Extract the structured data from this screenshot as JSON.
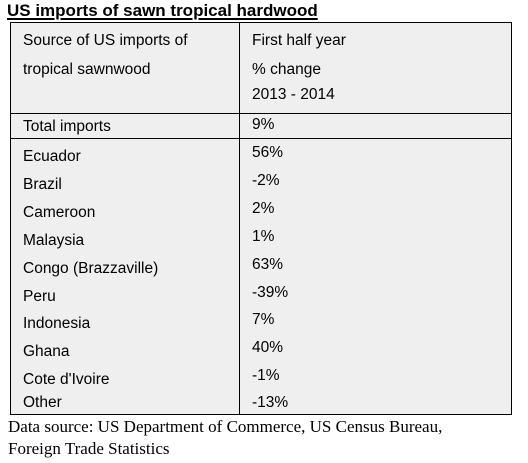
{
  "title": "US imports of sawn tropical hardwood",
  "table": {
    "header": {
      "col1": [
        "Source of US imports of",
        "tropical sawnwood"
      ],
      "col2": [
        "First half year",
        "% change",
        "2013 - 2014"
      ]
    },
    "total": {
      "source": "Total imports",
      "change": "9%"
    },
    "rows": [
      {
        "source": "Ecuador",
        "change": "56%"
      },
      {
        "source": "Brazil",
        "change": "-2%"
      },
      {
        "source": "Cameroon",
        "change": "2%"
      },
      {
        "source": "Malaysia",
        "change": "1%"
      },
      {
        "source": "Congo (Brazzaville)",
        "change": "63%"
      },
      {
        "source": "Peru",
        "change": "-39%"
      },
      {
        "source": "Indonesia",
        "change": "7%"
      },
      {
        "source": "Ghana",
        "change": "40%"
      },
      {
        "source": "Cote d'Ivoire",
        "change": "-1%"
      },
      {
        "source": "Other",
        "change": "-13%"
      }
    ]
  },
  "footer": [
    "Data source: US Department of Commerce, US Census Bureau,",
    "Foreign Trade Statistics"
  ]
}
